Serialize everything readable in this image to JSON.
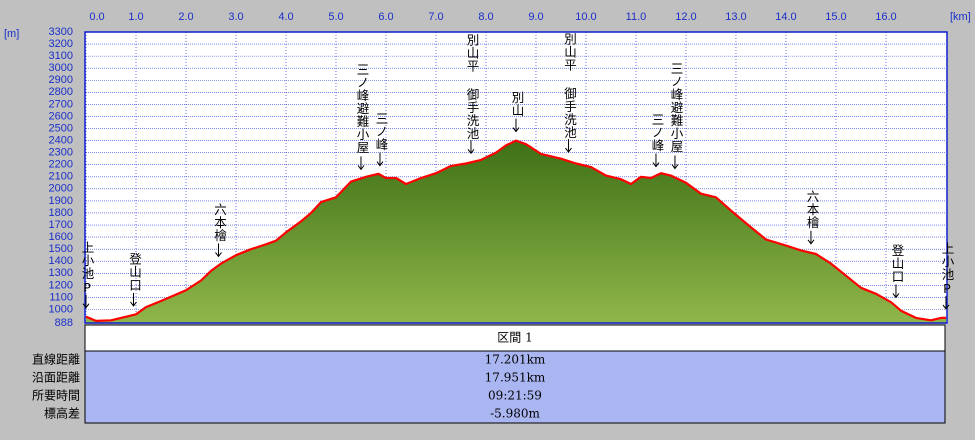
{
  "chart_data": {
    "type": "line",
    "x_unit": "[km]",
    "y_unit": "[m]",
    "xlim": [
      0,
      17.201
    ],
    "ylim": [
      888,
      3300
    ],
    "xticks": [
      {
        "value": 0,
        "label": "0.0"
      },
      {
        "value": 1,
        "label": "1.0"
      },
      {
        "value": 2,
        "label": "2.0"
      },
      {
        "value": 3,
        "label": "3.0"
      },
      {
        "value": 4,
        "label": "4.0"
      },
      {
        "value": 5,
        "label": "5.0"
      },
      {
        "value": 6,
        "label": "6.0"
      },
      {
        "value": 7,
        "label": "7.0"
      },
      {
        "value": 8,
        "label": "8.0"
      },
      {
        "value": 9,
        "label": "9.0"
      },
      {
        "value": 10,
        "label": "10.0"
      },
      {
        "value": 11,
        "label": "11.0"
      },
      {
        "value": 12,
        "label": "12.0"
      },
      {
        "value": 13,
        "label": "13.0"
      },
      {
        "value": 14,
        "label": "14.0"
      },
      {
        "value": 15,
        "label": "15.0"
      },
      {
        "value": 16,
        "label": "16.0"
      }
    ],
    "yticks": [
      888,
      1000,
      1100,
      1200,
      1300,
      1400,
      1500,
      1600,
      1700,
      1800,
      1900,
      2000,
      2100,
      2200,
      2300,
      2400,
      2500,
      2600,
      2700,
      2800,
      2900,
      3000,
      3100,
      3200,
      3300
    ],
    "grid": true,
    "x": [
      0,
      0.2,
      0.5,
      1.0,
      1.2,
      1.5,
      2.0,
      2.3,
      2.5,
      2.7,
      3.0,
      3.3,
      3.6,
      3.8,
      4.0,
      4.3,
      4.5,
      4.7,
      5.0,
      5.3,
      5.6,
      5.85,
      6.0,
      6.2,
      6.4,
      6.7,
      7.0,
      7.3,
      7.6,
      7.9,
      8.2,
      8.4,
      8.6,
      8.8,
      9.1,
      9.5,
      9.8,
      10.1,
      10.4,
      10.7,
      10.9,
      11.1,
      11.3,
      11.5,
      11.7,
      12.0,
      12.3,
      12.6,
      12.9,
      13.3,
      13.6,
      14.0,
      14.3,
      14.6,
      14.9,
      15.2,
      15.5,
      15.8,
      16.1,
      16.3,
      16.6,
      16.9,
      17.1,
      17.201
    ],
    "series": [
      {
        "name": "標高",
        "color": "#ff0000",
        "values": [
          940,
          905,
          910,
          960,
          1020,
          1070,
          1160,
          1240,
          1320,
          1380,
          1450,
          1500,
          1540,
          1570,
          1640,
          1730,
          1800,
          1890,
          1930,
          2060,
          2100,
          2125,
          2090,
          2090,
          2040,
          2090,
          2130,
          2190,
          2210,
          2240,
          2300,
          2360,
          2400,
          2370,
          2290,
          2250,
          2210,
          2180,
          2110,
          2080,
          2040,
          2100,
          2090,
          2130,
          2110,
          2050,
          1960,
          1930,
          1820,
          1680,
          1580,
          1530,
          1490,
          1460,
          1380,
          1280,
          1180,
          1130,
          1060,
          990,
          930,
          910,
          930,
          930
        ]
      }
    ],
    "annotations": [
      {
        "text": "上小池P",
        "x": 0
      },
      {
        "text": "登山口",
        "x": 0.95
      },
      {
        "text": "六本檜",
        "x": 2.65
      },
      {
        "text": "三ノ峰避難小屋",
        "x": 5.5
      },
      {
        "text": "三ノ峰",
        "x": 5.88
      },
      {
        "text": "別山平 御手洗池",
        "x": 7.7
      },
      {
        "text": "別山",
        "x": 8.6
      },
      {
        "text": "別山平 御手洗池",
        "x": 9.65
      },
      {
        "text": "三ノ峰",
        "x": 11.4
      },
      {
        "text": "三ノ峰避難小屋",
        "x": 11.78
      },
      {
        "text": "六本檜",
        "x": 14.5
      },
      {
        "text": "登山口",
        "x": 16.2
      },
      {
        "text": "上小池P",
        "x": 17.2
      }
    ]
  },
  "table": {
    "header": "区間 1",
    "rows": [
      {
        "label": "直線距離",
        "value": "17.201km"
      },
      {
        "label": "沿面距離",
        "value": "17.951km"
      },
      {
        "label": "所要時間",
        "value": "09:21:59"
      },
      {
        "label": "標高差",
        "value": "-5.980m"
      }
    ]
  }
}
